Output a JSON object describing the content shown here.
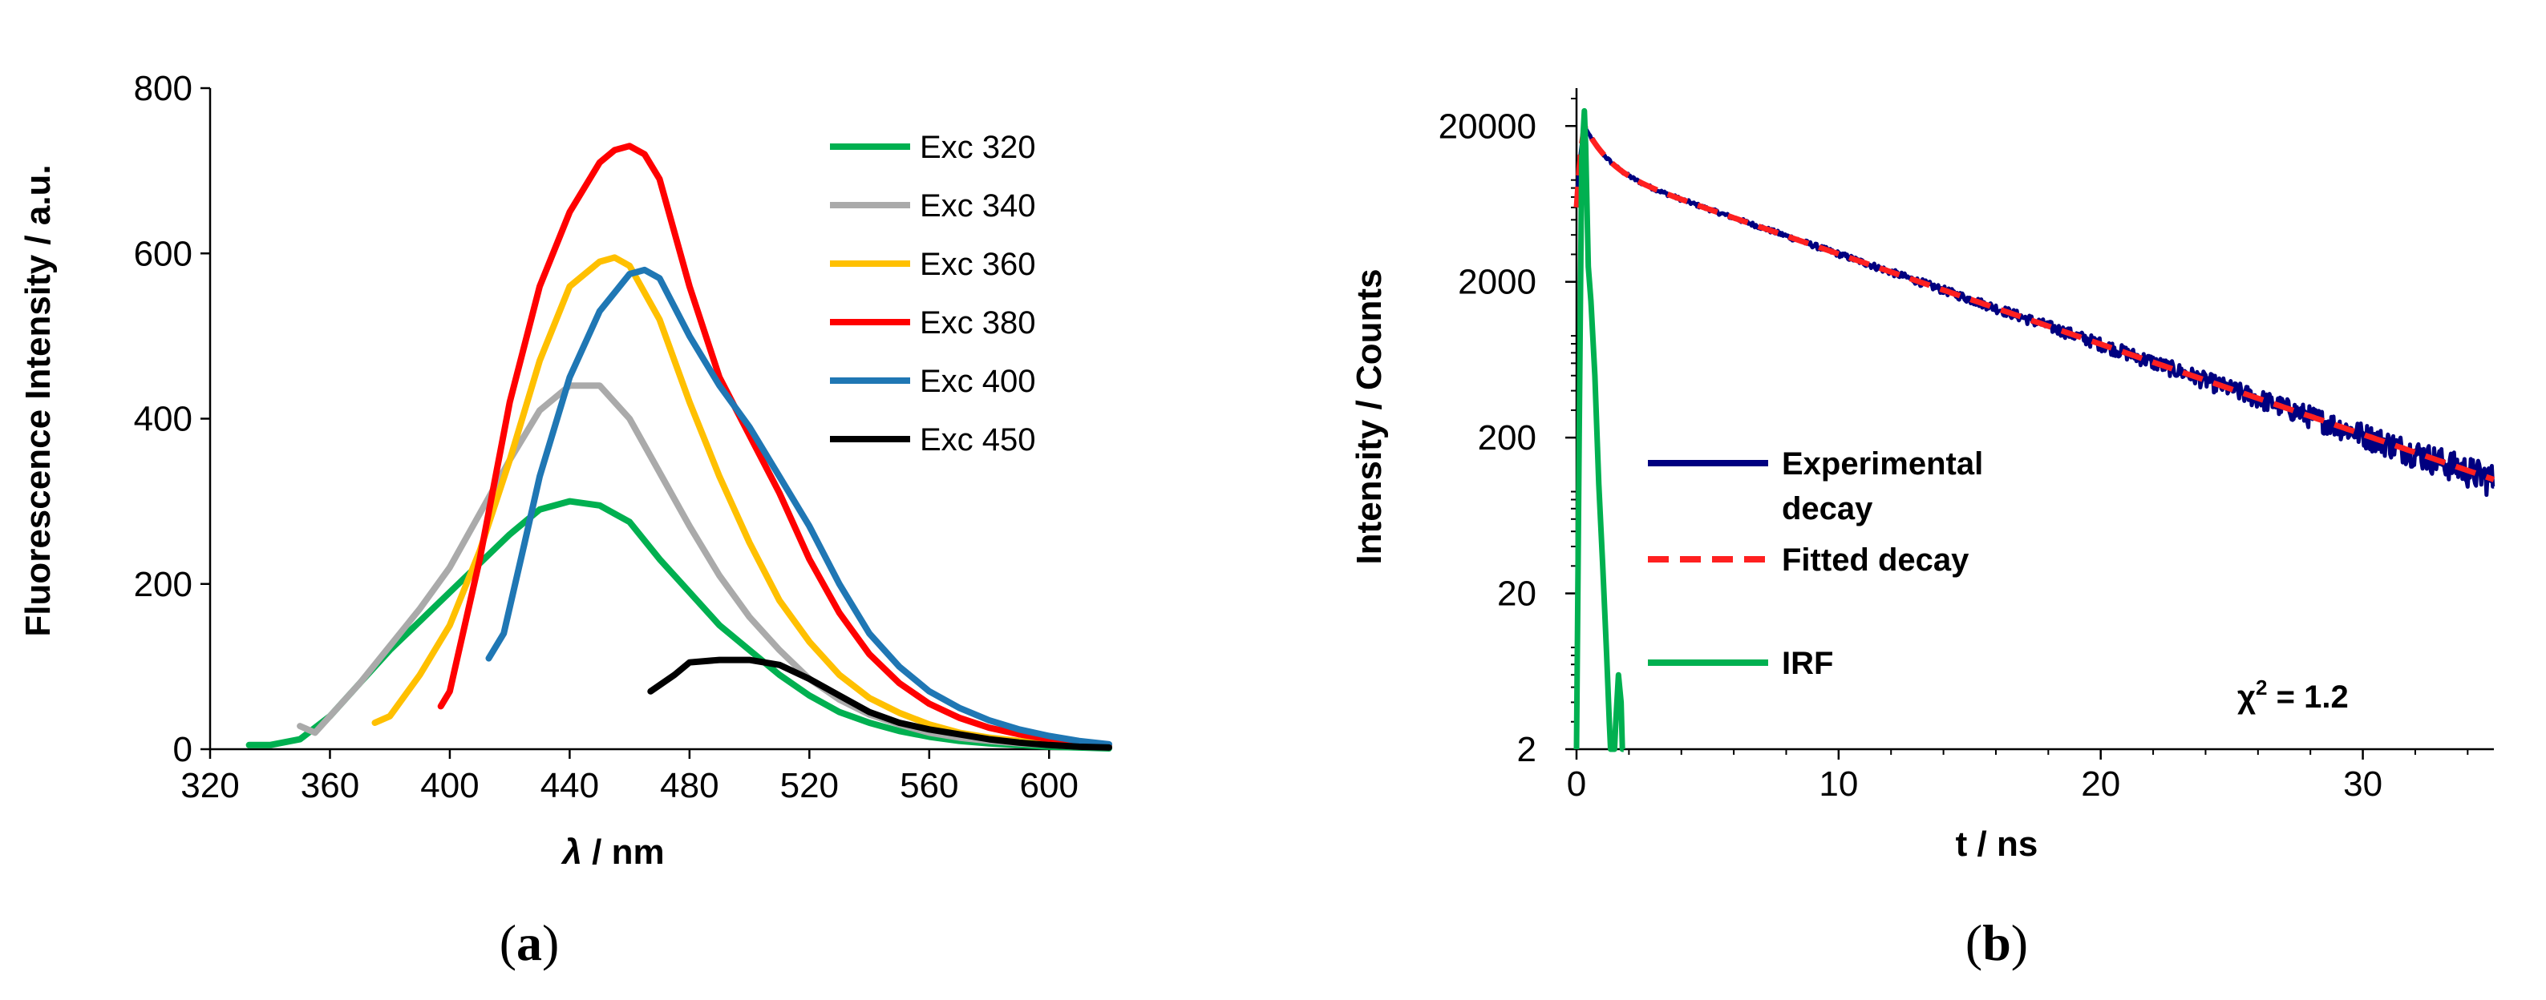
{
  "chart_data": [
    {
      "panel": "a",
      "panel_letter": "a",
      "type": "line",
      "xlabel_symbol": "λ",
      "xlabel_unit": " / nm",
      "ylabel": "Fluorescence Intensity / a.u.",
      "xlim": [
        320,
        620
      ],
      "ylim": [
        0,
        800
      ],
      "xticks": [
        "320",
        "360",
        "400",
        "440",
        "480",
        "520",
        "560",
        "600"
      ],
      "yticks": [
        "0",
        "200",
        "400",
        "600",
        "800"
      ],
      "legend_position": "top-right",
      "series": [
        {
          "name": "Exc 320",
          "color": "#00b050",
          "x": [
            333,
            340,
            350,
            360,
            370,
            380,
            390,
            400,
            410,
            420,
            430,
            440,
            450,
            460,
            470,
            480,
            490,
            500,
            510,
            520,
            530,
            540,
            550,
            560,
            570,
            580,
            590,
            600,
            610,
            620
          ],
          "y": [
            5,
            5,
            12,
            40,
            80,
            120,
            155,
            190,
            225,
            260,
            290,
            300,
            295,
            275,
            230,
            190,
            150,
            120,
            90,
            65,
            45,
            32,
            22,
            15,
            10,
            7,
            5,
            3,
            2,
            1
          ]
        },
        {
          "name": "Exc 340",
          "color": "#aaaaaa",
          "x": [
            350,
            355,
            360,
            370,
            380,
            390,
            400,
            410,
            420,
            430,
            440,
            450,
            460,
            470,
            480,
            490,
            500,
            510,
            520,
            530,
            540,
            550,
            560,
            570,
            580,
            590,
            600,
            610,
            620
          ],
          "y": [
            28,
            20,
            40,
            80,
            125,
            170,
            220,
            285,
            350,
            410,
            440,
            440,
            400,
            335,
            270,
            210,
            160,
            120,
            85,
            60,
            42,
            30,
            20,
            14,
            10,
            7,
            5,
            3,
            2
          ]
        },
        {
          "name": "Exc 360",
          "color": "#ffc000",
          "x": [
            375,
            380,
            390,
            400,
            410,
            420,
            430,
            440,
            450,
            455,
            460,
            470,
            480,
            490,
            500,
            510,
            520,
            530,
            540,
            550,
            560,
            570,
            580,
            590,
            600,
            610,
            620
          ],
          "y": [
            32,
            40,
            90,
            150,
            240,
            350,
            470,
            560,
            590,
            595,
            585,
            520,
            420,
            330,
            250,
            180,
            130,
            90,
            62,
            44,
            30,
            20,
            14,
            10,
            7,
            4,
            3
          ]
        },
        {
          "name": "Exc 380",
          "color": "#ff0000",
          "x": [
            397,
            400,
            410,
            420,
            430,
            440,
            450,
            455,
            460,
            465,
            470,
            480,
            490,
            500,
            510,
            520,
            530,
            540,
            550,
            560,
            570,
            580,
            590,
            600,
            610,
            620
          ],
          "y": [
            52,
            70,
            230,
            420,
            560,
            650,
            710,
            725,
            730,
            720,
            690,
            560,
            450,
            380,
            310,
            230,
            165,
            115,
            80,
            55,
            38,
            26,
            18,
            12,
            8,
            5
          ]
        },
        {
          "name": "Exc 400",
          "color": "#1f77b4",
          "x": [
            413,
            418,
            425,
            430,
            440,
            450,
            460,
            465,
            470,
            480,
            490,
            500,
            510,
            520,
            530,
            540,
            550,
            560,
            570,
            580,
            590,
            600,
            610,
            620
          ],
          "y": [
            110,
            140,
            250,
            330,
            450,
            530,
            575,
            580,
            570,
            500,
            440,
            390,
            330,
            270,
            200,
            140,
            100,
            70,
            50,
            35,
            24,
            16,
            10,
            6
          ]
        },
        {
          "name": "Exc 450",
          "color": "#000000",
          "x": [
            467,
            475,
            480,
            490,
            500,
            510,
            520,
            530,
            540,
            550,
            560,
            570,
            580,
            590,
            600,
            610,
            620
          ],
          "y": [
            70,
            90,
            105,
            108,
            108,
            102,
            85,
            65,
            45,
            32,
            24,
            18,
            12,
            8,
            5,
            3,
            2
          ]
        }
      ]
    },
    {
      "panel": "b",
      "panel_letter": "b",
      "type": "line",
      "yscale": "log",
      "xlabel": "t / ns",
      "ylabel": "Intensity / Counts",
      "xlim": [
        0,
        35
      ],
      "ylim": [
        2,
        35000
      ],
      "xticks": [
        "0",
        "10",
        "20",
        "30"
      ],
      "yticks": [
        "2",
        "20",
        "200",
        "2000",
        "20000"
      ],
      "annotation_prefix": "χ",
      "annotation_exponent": "2",
      "annotation_value": " = 1.2",
      "legend_position": "bottom-left",
      "series": [
        {
          "name": "Experimental",
          "name_line2": "decay",
          "color": "#000080",
          "style": "solid-noisy",
          "decay": {
            "amplitude": 20000,
            "t0": 0.3,
            "components": [
              [
                0.45,
                0.7
              ],
              [
                0.55,
                7.5
              ]
            ]
          }
        },
        {
          "name": "Fitted decay",
          "color": "#ff2020",
          "style": "dashed",
          "decay": {
            "amplitude": 20000,
            "t0": 0.3,
            "components": [
              [
                0.45,
                0.7
              ],
              [
                0.55,
                7.5
              ]
            ]
          }
        },
        {
          "name": "IRF",
          "color": "#00b050",
          "style": "solid",
          "x": [
            0.0,
            0.1,
            0.2,
            0.3,
            0.35,
            0.45,
            0.55,
            0.7,
            0.85,
            1.0,
            1.15,
            1.25,
            1.3,
            1.35,
            1.45,
            1.5,
            1.6,
            1.7,
            1.75,
            1.8
          ],
          "y": [
            2,
            200,
            12000,
            25000,
            15000,
            2500,
            1500,
            500,
            100,
            30,
            8,
            3,
            2,
            2,
            2,
            3,
            6,
            4,
            2,
            2
          ]
        }
      ]
    }
  ]
}
